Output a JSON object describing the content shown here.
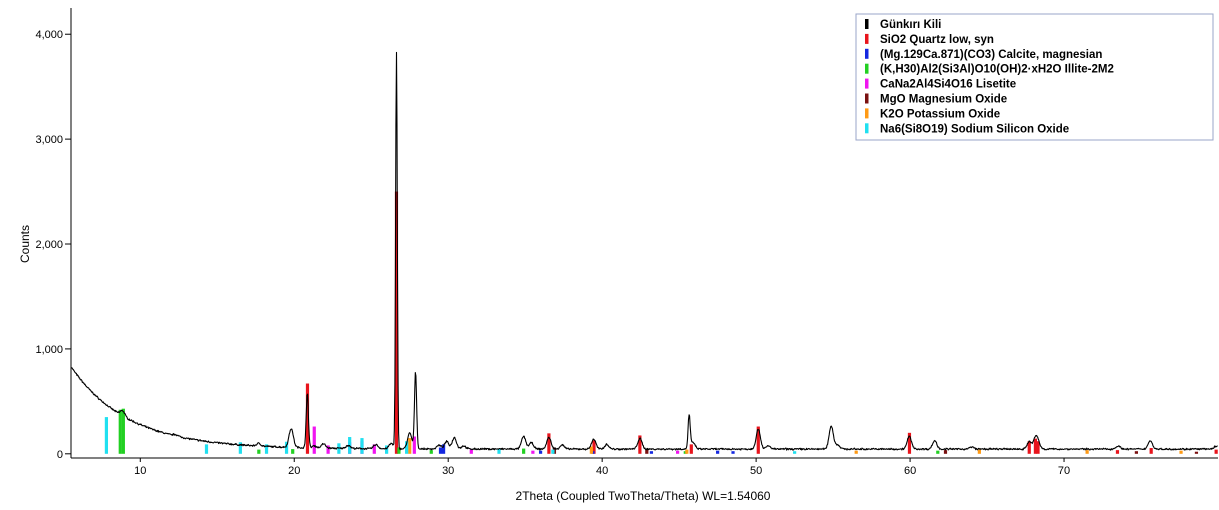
{
  "chart_data": {
    "type": "line",
    "xlabel": "2Theta (Coupled TwoTheta/Theta) WL=1.54060",
    "ylabel": "Counts",
    "xlim": [
      5.5,
      80
    ],
    "ylim": [
      -40,
      4250
    ],
    "x_ticks": [
      10,
      20,
      30,
      40,
      50,
      60,
      70
    ],
    "y_ticks": [
      0,
      1000,
      2000,
      3000,
      4000
    ],
    "y_tick_labels": [
      "0",
      "1,000",
      "2,000",
      "3,000",
      "4,000"
    ],
    "grid": false,
    "legend_position": "top-right",
    "legend": [
      {
        "label": "Günkırı Kili",
        "color": "#000000"
      },
      {
        "label": "SiO2 Quartz low, syn",
        "color": "#e8141c"
      },
      {
        "label": "(Mg.129Ca.871)(CO3) Calcite, magnesian",
        "color": "#1428e0"
      },
      {
        "label": "(K,H30)Al2(Si3Al)O10(OH)2·xH2O Illite-2M2",
        "color": "#22d022"
      },
      {
        "label": "CaNa2Al4Si4O16 Lisetite",
        "color": "#f014f0"
      },
      {
        "label": "MgO Magnesium Oxide",
        "color": "#7a1010"
      },
      {
        "label": "K2O Potassium Oxide",
        "color": "#ff9a14"
      },
      {
        "label": "Na6(Si8O19) Sodium Silicon Oxide",
        "color": "#20e0f0"
      }
    ],
    "pattern": {
      "name": "Günkırı Kili",
      "color": "#000000",
      "background": {
        "start_counts": 830,
        "asymptote": 45,
        "decay": 0.27
      },
      "peaks": [
        {
          "x": 8.85,
          "y": 50
        },
        {
          "x": 12.3,
          "y": 15
        },
        {
          "x": 17.7,
          "y": 25
        },
        {
          "x": 19.8,
          "y": 180
        },
        {
          "x": 20.85,
          "y": 530
        },
        {
          "x": 21.3,
          "y": 20
        },
        {
          "x": 21.9,
          "y": 40
        },
        {
          "x": 23.5,
          "y": 30
        },
        {
          "x": 25.3,
          "y": 40
        },
        {
          "x": 26.3,
          "y": 50
        },
        {
          "x": 26.64,
          "y": 3770
        },
        {
          "x": 27.5,
          "y": 150
        },
        {
          "x": 27.88,
          "y": 730
        },
        {
          "x": 29.4,
          "y": 35
        },
        {
          "x": 29.9,
          "y": 70
        },
        {
          "x": 30.4,
          "y": 110
        },
        {
          "x": 31.0,
          "y": 30
        },
        {
          "x": 34.9,
          "y": 120
        },
        {
          "x": 35.4,
          "y": 60
        },
        {
          "x": 36.54,
          "y": 110
        },
        {
          "x": 37.4,
          "y": 40
        },
        {
          "x": 39.45,
          "y": 95
        },
        {
          "x": 40.3,
          "y": 45
        },
        {
          "x": 42.45,
          "y": 100
        },
        {
          "x": 45.65,
          "y": 320
        },
        {
          "x": 45.9,
          "y": 60
        },
        {
          "x": 50.14,
          "y": 190
        },
        {
          "x": 50.8,
          "y": 30
        },
        {
          "x": 54.88,
          "y": 220
        },
        {
          "x": 55.3,
          "y": 40
        },
        {
          "x": 59.95,
          "y": 120
        },
        {
          "x": 61.6,
          "y": 80
        },
        {
          "x": 64.0,
          "y": 20
        },
        {
          "x": 67.74,
          "y": 70
        },
        {
          "x": 68.14,
          "y": 90
        },
        {
          "x": 68.3,
          "y": 60
        },
        {
          "x": 73.5,
          "y": 30
        },
        {
          "x": 75.6,
          "y": 80
        },
        {
          "x": 79.9,
          "y": 30
        }
      ]
    },
    "reference_markers": [
      {
        "phase": "SiO2 Quartz low, syn",
        "color": "#e8141c",
        "x": [
          20.86,
          26.64,
          36.54,
          39.47,
          42.45,
          45.79,
          50.14,
          59.96,
          67.74,
          68.14,
          68.31,
          73.47,
          75.66,
          79.88
        ],
        "y": [
          670,
          2500,
          195,
          130,
          175,
          90,
          260,
          200,
          120,
          145,
          120,
          35,
          55,
          40
        ]
      },
      {
        "phase": "(Mg.129Ca.871)(CO3) Calcite, magnesian",
        "color": "#1428e0",
        "x": [
          29.5,
          29.7,
          36.0,
          39.4,
          43.2,
          47.5,
          48.5
        ],
        "y": [
          60,
          90,
          30,
          25,
          25,
          30,
          25
        ]
      },
      {
        "phase": "(K,H30)Al2(Si3Al)O10(OH)2·xH2O Illite-2M2",
        "color": "#22d022",
        "x": [
          8.7,
          8.9,
          17.7,
          19.9,
          26.8,
          28.9,
          34.9,
          45.4,
          61.8
        ],
        "y": [
          420,
          430,
          40,
          45,
          60,
          35,
          50,
          25,
          30
        ]
      },
      {
        "phase": "CaNa2Al4Si4O16 Lisetite",
        "color": "#f014f0",
        "x": [
          21.3,
          22.2,
          23.6,
          24.4,
          25.2,
          27.8,
          31.5,
          35.5,
          44.9
        ],
        "y": [
          260,
          80,
          110,
          120,
          90,
          165,
          40,
          30,
          30
        ]
      },
      {
        "phase": "MgO Magnesium Oxide",
        "color": "#7a1010",
        "x": [
          36.9,
          42.9,
          62.3,
          74.7,
          78.6
        ],
        "y": [
          60,
          40,
          35,
          25,
          20
        ]
      },
      {
        "phase": "K2O Potassium Oxide",
        "color": "#ff9a14",
        "x": [
          27.5,
          39.3,
          45.5,
          56.5,
          64.5,
          71.5,
          77.6
        ],
        "y": [
          150,
          70,
          40,
          30,
          40,
          35,
          30
        ]
      },
      {
        "phase": "Na6(Si8O19) Sodium Silicon Oxide",
        "color": "#20e0f0",
        "x": [
          7.8,
          14.3,
          16.5,
          18.2,
          19.5,
          22.9,
          23.6,
          24.4,
          26.0,
          27.3,
          33.3,
          36.8,
          52.5
        ],
        "y": [
          350,
          90,
          110,
          90,
          115,
          100,
          160,
          150,
          80,
          120,
          45,
          40,
          25
        ]
      }
    ]
  }
}
